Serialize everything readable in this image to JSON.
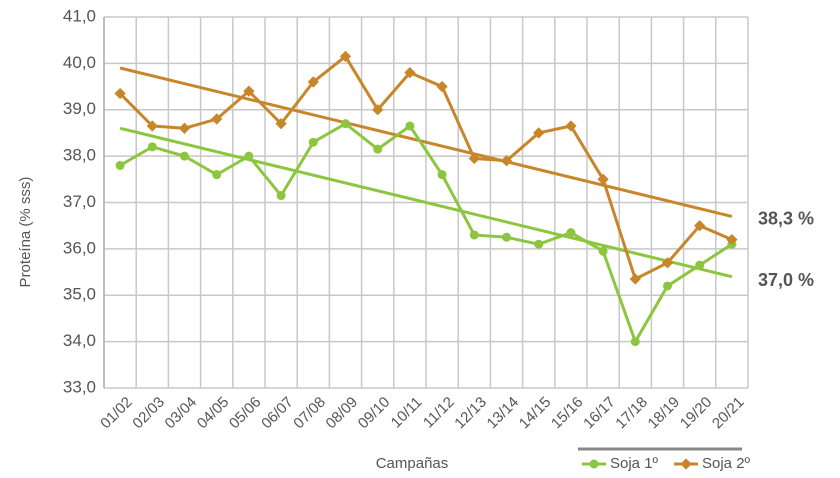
{
  "chart_data": {
    "type": "line",
    "ylabel": "Proteína (% sss)",
    "xlabel": "Campañas",
    "categories": [
      "01/02",
      "02/03",
      "03/04",
      "04/05",
      "05/06",
      "06/07",
      "07/08",
      "08/09",
      "09/10",
      "10/11",
      "11/12",
      "12/13",
      "13/14",
      "14/15",
      "15/16",
      "16/17",
      "17/18",
      "18/19",
      "19/20",
      "20/21"
    ],
    "series": [
      {
        "name": "Soja 1º",
        "color": "#8cc63f",
        "values": [
          37.8,
          38.2,
          38.0,
          37.6,
          38.0,
          37.15,
          38.3,
          38.7,
          38.15,
          38.65,
          37.6,
          36.3,
          36.25,
          36.1,
          36.35,
          35.95,
          34.0,
          35.2,
          35.65,
          36.1
        ],
        "trend": [
          38.6,
          35.4
        ]
      },
      {
        "name": "Soja 2º",
        "color": "#c8862a",
        "values": [
          39.35,
          38.65,
          38.6,
          38.8,
          39.4,
          38.7,
          39.6,
          40.15,
          39.0,
          39.8,
          39.5,
          37.95,
          37.9,
          38.5,
          38.65,
          37.5,
          35.35,
          35.7,
          36.5,
          36.2
        ],
        "trend": [
          39.9,
          36.7
        ]
      }
    ],
    "annotations": [
      {
        "text": "38,3 %",
        "color": "#8cc63f"
      },
      {
        "text": "37,0 %",
        "color": "#c8862a"
      }
    ],
    "ylim": [
      33,
      41
    ],
    "yticks": [
      {
        "value": 33,
        "label": "33,0"
      },
      {
        "value": 34,
        "label": "34,0"
      },
      {
        "value": 35,
        "label": "35,0"
      },
      {
        "value": 36,
        "label": "36,0"
      },
      {
        "value": 37,
        "label": "37,0"
      },
      {
        "value": 38,
        "label": "38,0"
      },
      {
        "value": 39,
        "label": "39,0"
      },
      {
        "value": 40,
        "label": "40,0"
      },
      {
        "value": 41,
        "label": "41,0"
      }
    ],
    "grid": true,
    "legend": "bottom-right"
  }
}
